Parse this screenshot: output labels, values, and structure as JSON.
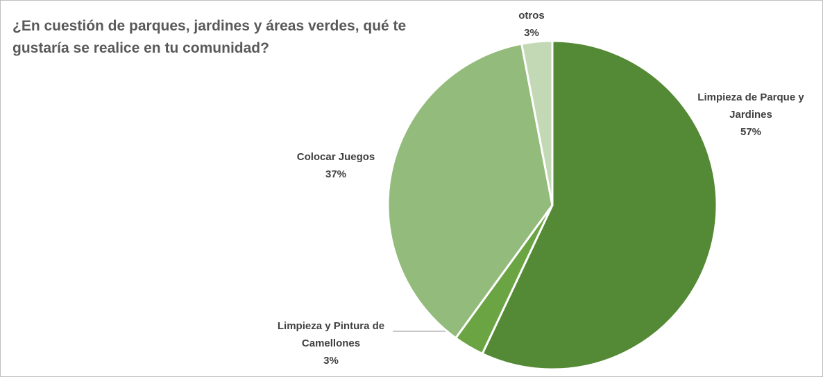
{
  "chart_data": {
    "type": "pie",
    "title": "¿En cuestión de parques, jardines y áreas verdes, qué te gustaría se realice en tu comunidad?",
    "categories": [
      "Limpieza de Parque y Jardines",
      "Limpieza y Pintura de Camellones",
      "Colocar Juegos",
      "otros"
    ],
    "values": [
      57,
      3,
      37,
      3
    ],
    "value_labels": [
      "57%",
      "3%",
      "37%",
      "3%"
    ],
    "colors": [
      "#548935",
      "#6aa443",
      "#93bb7c",
      "#c3d9b5"
    ]
  }
}
